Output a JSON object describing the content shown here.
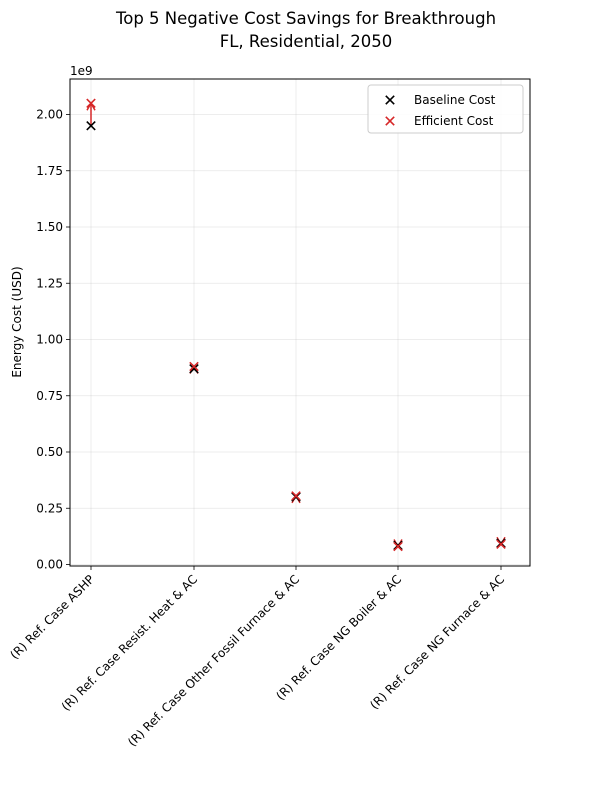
{
  "chart_data": {
    "type": "scatter",
    "title_lines": [
      "Top 5 Negative Cost Savings for Breakthrough",
      "FL, Residential, 2050"
    ],
    "xlabel": "",
    "ylabel": "Energy Cost (USD)",
    "y_offset_label": "1e9",
    "ylim": [
      0,
      2.15
    ],
    "y_ticks": [
      0.0,
      0.25,
      0.5,
      0.75,
      1.0,
      1.25,
      1.5,
      1.75,
      2.0
    ],
    "y_tick_labels": [
      "0.00",
      "0.25",
      "0.50",
      "0.75",
      "1.00",
      "1.25",
      "1.50",
      "1.75",
      "2.00"
    ],
    "categories": [
      "(R) Ref. Case ASHP",
      "(R) Ref. Case Resist. Heat & AC",
      "(R) Ref. Case Other Fossil Furnace & AC",
      "(R) Ref. Case NG Boiler & AC",
      "(R) Ref. Case NG Furnace & AC"
    ],
    "grid": true,
    "legend_position": "upper-right",
    "series": [
      {
        "name": "Baseline Cost",
        "color": "#000000",
        "marker": "x",
        "values": [
          1.95,
          0.87,
          0.3,
          0.085,
          0.095
        ]
      },
      {
        "name": "Efficient Cost",
        "color": "#d62728",
        "marker": "x",
        "values": [
          2.05,
          0.88,
          0.305,
          0.08,
          0.09
        ]
      }
    ],
    "arrows": {
      "color": "#d62728",
      "from": [
        1.95,
        0.87,
        0.3,
        0.085,
        0.095
      ],
      "to": [
        2.05,
        0.88,
        0.305,
        0.08,
        0.09
      ]
    }
  }
}
